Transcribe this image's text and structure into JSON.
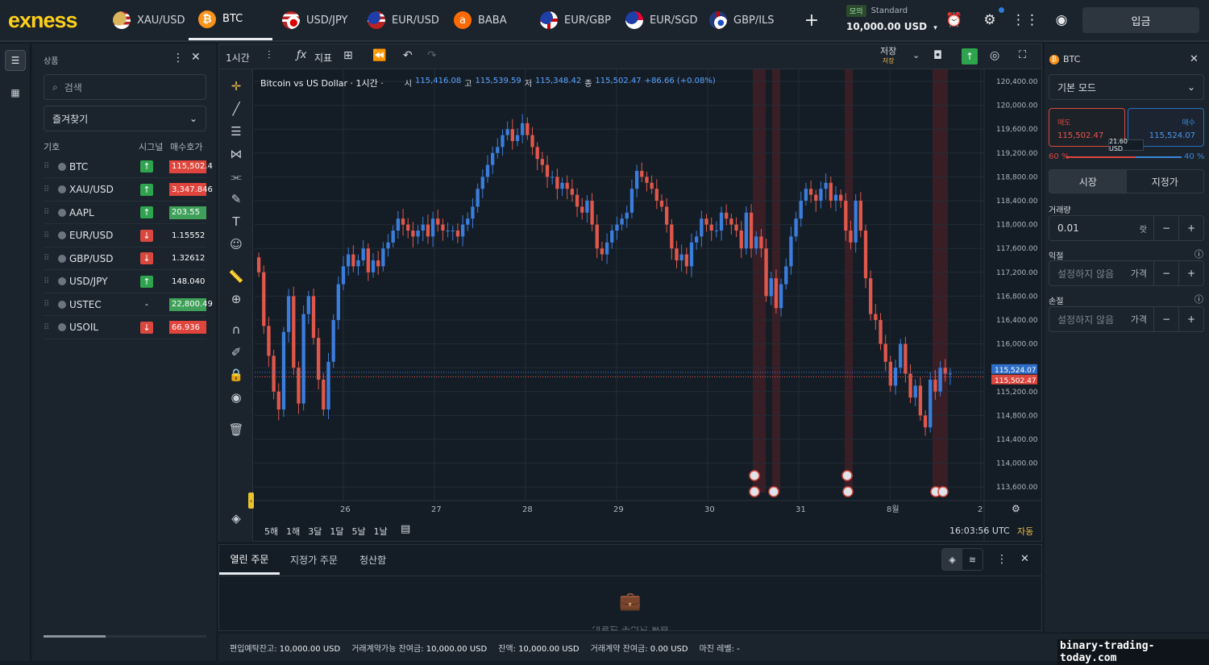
{
  "brand": "exness",
  "tabs": [
    {
      "label": "XAU/USD",
      "icon": "gold-usd-flag-icon"
    },
    {
      "label": "BTC",
      "icon": "bitcoin-icon"
    },
    {
      "label": "USD/JPY",
      "icon": "usd-jpy-flag-icon"
    },
    {
      "label": "EUR/USD",
      "icon": "eur-usd-flag-icon"
    },
    {
      "label": "BABA",
      "icon": "alibaba-icon"
    },
    {
      "label": "EUR/GBP",
      "icon": "eur-gbp-flag-icon"
    },
    {
      "label": "EUR/SGD",
      "icon": "eur-sgd-flag-icon"
    },
    {
      "label": "GBP/ILS",
      "icon": "gbp-ils-flag-icon"
    }
  ],
  "account": {
    "mode": "모의",
    "type": "Standard",
    "balance": "10,000.00 USD"
  },
  "deposit_label": "입금",
  "left_panel": {
    "title": "상품",
    "search_placeholder": "검색",
    "favorites": "즐겨찾기",
    "col_symbol": "기호",
    "col_signal": "시그널",
    "col_bid": "매수호가",
    "rows": [
      {
        "symbol": "BTC",
        "signal": "↑",
        "price": "115,502.4",
        "dir": "up",
        "pbg": "#e0453d"
      },
      {
        "symbol": "XAU/USD",
        "signal": "↑",
        "price": "3,347.846",
        "dir": "up",
        "pbg": "#e0453d"
      },
      {
        "symbol": "AAPL",
        "signal": "↑",
        "price": "203.55",
        "dir": "up",
        "pbg": "#3fa05a"
      },
      {
        "symbol": "EUR/USD",
        "signal": "↓",
        "price": "1.15552",
        "dir": "down",
        "pbg": ""
      },
      {
        "symbol": "GBP/USD",
        "signal": "↓",
        "price": "1.32612",
        "dir": "down",
        "pbg": ""
      },
      {
        "symbol": "USD/JPY",
        "signal": "↑",
        "price": "148.040",
        "dir": "up",
        "pbg": ""
      },
      {
        "symbol": "USTEC",
        "signal": "-",
        "price": "22,800.49",
        "dir": "none",
        "pbg": "#3fa05a"
      },
      {
        "symbol": "USOIL",
        "signal": "↓",
        "price": "66.936",
        "dir": "down",
        "pbg": "#e0453d"
      }
    ]
  },
  "chart_toolbar": {
    "interval": "1시간",
    "indicators": "지표",
    "save": "저장",
    "save_sub": "저장"
  },
  "chart_data": {
    "type": "candlestick",
    "title": "Bitcoin vs US Dollar · 1시간 ·",
    "ohlc": {
      "o_label": "시",
      "o": "115,416.08",
      "h_label": "고",
      "h": "115,539.59",
      "l_label": "저",
      "l": "115,348.42",
      "c_label": "종",
      "c": "115,502.47",
      "change": "+86.66 (+0.08%)"
    },
    "y_ticks": [
      "120,400.00",
      "120,000.00",
      "119,600.00",
      "119,200.00",
      "118,800.00",
      "118,400.00",
      "118,000.00",
      "117,600.00",
      "117,200.00",
      "116,800.00",
      "116,400.00",
      "116,000.00",
      "115,600.00",
      "115,200.00",
      "114,800.00",
      "114,400.00",
      "114,000.00",
      "113,600.00"
    ],
    "y_top": 120400,
    "y_step": 400,
    "x_ticks": [
      "26",
      "27",
      "28",
      "29",
      "30",
      "31",
      "8월",
      "2"
    ],
    "ask_label": "115,524.07",
    "bid_label": "115,502.47",
    "closes": [
      117200,
      116300,
      115800,
      115200,
      114900,
      116200,
      116800,
      115600,
      115000,
      116500,
      116800,
      116100,
      115400,
      114900,
      115700,
      116400,
      117000,
      117300,
      117500,
      117300,
      117400,
      117600,
      117200,
      117400,
      117300,
      117600,
      117700,
      117900,
      118100,
      118000,
      117900,
      117800,
      117900,
      118000,
      117800,
      118100,
      118000,
      117900,
      117900,
      117900,
      117800,
      118000,
      118100,
      118300,
      118600,
      118800,
      119000,
      119200,
      119300,
      119500,
      119600,
      119400,
      119500,
      119700,
      119500,
      119300,
      119100,
      119000,
      118800,
      118800,
      118600,
      118700,
      118600,
      118500,
      118300,
      118200,
      118400,
      118000,
      117600,
      117500,
      117700,
      117900,
      118000,
      118100,
      118200,
      118600,
      118900,
      118800,
      118700,
      118600,
      118400,
      118300,
      118000,
      117600,
      117400,
      117500,
      117300,
      117700,
      117800,
      118100,
      118000,
      117900,
      117900,
      118200,
      118100,
      118000,
      117900,
      117600,
      118200,
      117600,
      117800,
      117600,
      116800,
      117100,
      116600,
      117000,
      117300,
      117800,
      118100,
      118400,
      118600,
      118500,
      118400,
      118600,
      118700,
      118400,
      118500,
      118400,
      117900,
      117700,
      118400,
      117900,
      117100,
      116500,
      116400,
      116000,
      115700,
      115300,
      115600,
      116000,
      115500,
      115100,
      115300,
      114800,
      114600,
      115400,
      115200,
      115600,
      115500,
      115502
    ],
    "time_ranges": [
      "5해",
      "1해",
      "3달",
      "1달",
      "5날",
      "1날"
    ],
    "clock": "16:03:56 UTC",
    "auto": "자동"
  },
  "bottom": {
    "tabs": [
      "열린 주문",
      "지정가 주문",
      "청산함"
    ],
    "empty": "개설된 포지션 없음"
  },
  "status": [
    {
      "label": "편입예탁잔고:",
      "value": "10,000.00 USD"
    },
    {
      "label": "거래계약가능 잔여금:",
      "value": "10,000.00 USD"
    },
    {
      "label": "잔액:",
      "value": "10,000.00 USD"
    },
    {
      "label": "거래계약 잔여금:",
      "value": "0.00 USD"
    },
    {
      "label": "마진 레벨:",
      "value": "-"
    }
  ],
  "watermark": "binary-trading-today.com",
  "right": {
    "symbol": "BTC",
    "mode": "기본 모드",
    "sell_label": "매도",
    "sell_price": "115,502.47",
    "buy_label": "매수",
    "buy_price": "115,524.07",
    "spread": "21.60 USD",
    "sell_pct": "60 %",
    "buy_pct": "40 %",
    "market": "시장",
    "limit": "지정가",
    "volume_label": "거래량",
    "volume": "0.01",
    "lot": "랏",
    "tp_label": "익절",
    "sl_label": "손절",
    "not_set": "설정하지 않음",
    "price_mode": "가격"
  }
}
